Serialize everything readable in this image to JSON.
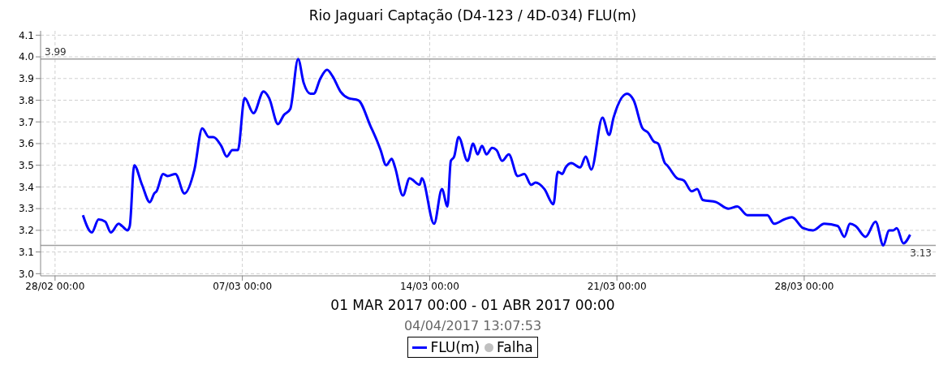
{
  "chart_data": {
    "type": "line",
    "title": "Rio Jaguari Captação (D4-123 / 4D-034) FLU(m)",
    "xlabel": "01 MAR 2017 00:00 - 01 ABR 2017 00:00",
    "annotations": [
      "04/04/2017 13:07:53"
    ],
    "x": [
      "2017-03-01T01:00",
      "2017-03-01T09:00",
      "2017-03-01T15:00",
      "2017-03-01T21:00",
      "2017-03-02T02:00",
      "2017-03-02T09:00",
      "2017-03-02T12:00",
      "2017-03-02T17:00",
      "2017-03-02T19:00",
      "2017-03-02T23:00",
      "2017-03-03T06:00",
      "2017-03-03T13:00",
      "2017-03-03T17:00",
      "2017-03-03T19:00",
      "2017-03-04T01:00",
      "2017-03-04T05:00",
      "2017-03-04T12:00",
      "2017-03-04T20:00",
      "2017-03-05T05:00",
      "2017-03-05T12:00",
      "2017-03-05T18:00",
      "2017-03-05T22:00",
      "2017-03-06T05:00",
      "2017-03-06T10:00",
      "2017-03-06T15:00",
      "2017-03-06T20:00",
      "2017-03-07T02:00",
      "2017-03-07T10:00",
      "2017-03-07T19:00",
      "2017-03-08T00:00",
      "2017-03-08T08:00",
      "2017-03-08T13:00",
      "2017-03-08T19:00",
      "2017-03-09T02:00",
      "2017-03-09T07:00",
      "2017-03-09T13:00",
      "2017-03-09T16:00",
      "2017-03-09T22:00",
      "2017-03-10T04:00",
      "2017-03-10T09:00",
      "2017-03-10T16:00",
      "2017-03-10T23:00",
      "2017-03-11T08:00",
      "2017-03-11T19:00",
      "2017-03-12T01:00",
      "2017-03-12T04:00",
      "2017-03-12T09:00",
      "2017-03-12T14:00",
      "2017-03-12T17:00",
      "2017-03-13T00:00",
      "2017-03-13T06:00",
      "2017-03-13T15:00",
      "2017-03-13T17:00",
      "2017-03-14T04:00",
      "2017-03-14T11:00",
      "2017-03-14T16:00",
      "2017-03-14T19:00",
      "2017-03-14T22:00",
      "2017-03-15T02:00",
      "2017-03-15T10:00",
      "2017-03-15T15:00",
      "2017-03-15T19:00",
      "2017-03-15T23:00",
      "2017-03-16T03:00",
      "2017-03-16T08:00",
      "2017-03-16T12:00",
      "2017-03-16T17:00",
      "2017-03-16T23:00",
      "2017-03-17T07:00",
      "2017-03-17T13:00",
      "2017-03-17T19:00",
      "2017-03-17T23:00",
      "2017-03-18T07:00",
      "2017-03-18T15:00",
      "2017-03-18T19:00",
      "2017-03-18T23:00",
      "2017-03-19T02:00",
      "2017-03-19T07:00",
      "2017-03-19T15:00",
      "2017-03-19T20:00",
      "2017-03-20T01:00",
      "2017-03-20T11:00",
      "2017-03-20T17:00",
      "2017-03-20T21:00",
      "2017-03-21T09:00",
      "2017-03-21T15:00",
      "2017-03-21T23:00",
      "2017-03-22T04:00",
      "2017-03-22T09:00",
      "2017-03-22T13:00",
      "2017-03-22T19:00",
      "2017-03-22T21:00",
      "2017-03-23T06:00",
      "2017-03-23T12:00",
      "2017-03-23T19:00",
      "2017-03-24T00:00",
      "2017-03-24T05:00",
      "2017-03-24T17:00",
      "2017-03-25T04:00",
      "2017-03-25T12:00",
      "2017-03-25T21:00",
      "2017-03-26T15:00",
      "2017-03-26T21:00",
      "2017-03-27T06:00",
      "2017-03-27T13:00",
      "2017-03-27T23:00",
      "2017-03-28T08:00",
      "2017-03-28T18:00",
      "2017-03-29T06:00",
      "2017-03-29T12:00",
      "2017-03-29T17:00",
      "2017-03-29T22:00",
      "2017-03-30T07:00",
      "2017-03-30T16:00",
      "2017-03-30T23:00",
      "2017-03-31T04:00",
      "2017-03-31T08:00",
      "2017-03-31T11:00",
      "2017-03-31T17:00",
      "2017-03-31T23:00"
    ],
    "series": [
      {
        "name": "FLU(m)",
        "color": "#0000ff",
        "values": [
          3.27,
          3.19,
          3.25,
          3.24,
          3.19,
          3.23,
          3.22,
          3.2,
          3.22,
          3.5,
          3.41,
          3.33,
          3.37,
          3.38,
          3.46,
          3.45,
          3.46,
          3.37,
          3.48,
          3.67,
          3.63,
          3.63,
          3.59,
          3.54,
          3.57,
          3.57,
          3.81,
          3.74,
          3.84,
          3.81,
          3.69,
          3.73,
          3.76,
          3.99,
          3.88,
          3.83,
          3.83,
          3.9,
          3.94,
          3.91,
          3.84,
          3.81,
          3.8,
          3.68,
          3.61,
          3.57,
          3.5,
          3.53,
          3.49,
          3.36,
          3.44,
          3.41,
          3.44,
          3.23,
          3.39,
          3.31,
          3.52,
          3.54,
          3.63,
          3.52,
          3.6,
          3.55,
          3.59,
          3.55,
          3.58,
          3.57,
          3.52,
          3.55,
          3.45,
          3.46,
          3.41,
          3.42,
          3.39,
          3.32,
          3.47,
          3.46,
          3.49,
          3.51,
          3.49,
          3.54,
          3.48,
          3.72,
          3.64,
          3.72,
          3.83,
          3.8,
          3.67,
          3.65,
          3.61,
          3.6,
          3.51,
          3.5,
          3.44,
          3.43,
          3.38,
          3.39,
          3.34,
          3.33,
          3.3,
          3.31,
          3.27,
          3.27,
          3.23,
          3.25,
          3.26,
          3.21,
          3.2,
          3.23,
          3.22,
          3.17,
          3.23,
          3.22,
          3.17,
          3.24,
          3.13,
          3.2,
          3.2,
          3.21,
          3.14,
          3.18
        ]
      },
      {
        "name": "Falha",
        "type": "scatter",
        "color": "#c0c0c0",
        "values": [
          null,
          null,
          null,
          null,
          null,
          null,
          null,
          null,
          null,
          null,
          null,
          null,
          null,
          null,
          null,
          null,
          null,
          null,
          null,
          null,
          null,
          null,
          null,
          null,
          null,
          null,
          null,
          null,
          null,
          null,
          null,
          null,
          null,
          null,
          null,
          null,
          null,
          null,
          null,
          null,
          null,
          null,
          null,
          null,
          null,
          null,
          null,
          null,
          null,
          null,
          null,
          null,
          null,
          null,
          null,
          null,
          null,
          null,
          null,
          null,
          null,
          null,
          null,
          null,
          null,
          null,
          null,
          null,
          null,
          null,
          null,
          null,
          null,
          null,
          null,
          null,
          null,
          null,
          null,
          null,
          null,
          null,
          null,
          null,
          null,
          null,
          null,
          null,
          null,
          null,
          null,
          null,
          null,
          null,
          null,
          null,
          null,
          null,
          null,
          null,
          null,
          null,
          null,
          null,
          null,
          null,
          null,
          null,
          null,
          null,
          null,
          null,
          null,
          null,
          null,
          null,
          null,
          null,
          null,
          null
        ]
      }
    ],
    "xlim": [
      "2017-02-27T11:00",
      "2017-04-01T22:00"
    ],
    "xticks": [
      {
        "value": "2017-02-28T00:00",
        "label": "28/02 00:00"
      },
      {
        "value": "2017-03-07T00:00",
        "label": "07/03 00:00"
      },
      {
        "value": "2017-03-14T00:00",
        "label": "14/03 00:00"
      },
      {
        "value": "2017-03-21T00:00",
        "label": "21/03 00:00"
      },
      {
        "value": "2017-03-28T00:00",
        "label": "28/03 00:00"
      }
    ],
    "ylim": [
      2.99,
      4.12
    ],
    "yticks": [
      {
        "value": 3,
        "label": "3.0"
      },
      3.1,
      3.2,
      3.3,
      3.4,
      3.5,
      3.6,
      3.7,
      3.8,
      3.9,
      {
        "value": 4,
        "label": "4.0"
      },
      4.1
    ],
    "ref_lines": [
      {
        "axis": "y",
        "value": 3.99,
        "label": "3.99",
        "color": "#a0a0a0"
      },
      {
        "axis": "y",
        "value": 3.13,
        "label": "3.13",
        "color": "#a0a0a0"
      }
    ],
    "grid": true,
    "legend": "bottom",
    "marker": "none",
    "line_style": "solid"
  }
}
